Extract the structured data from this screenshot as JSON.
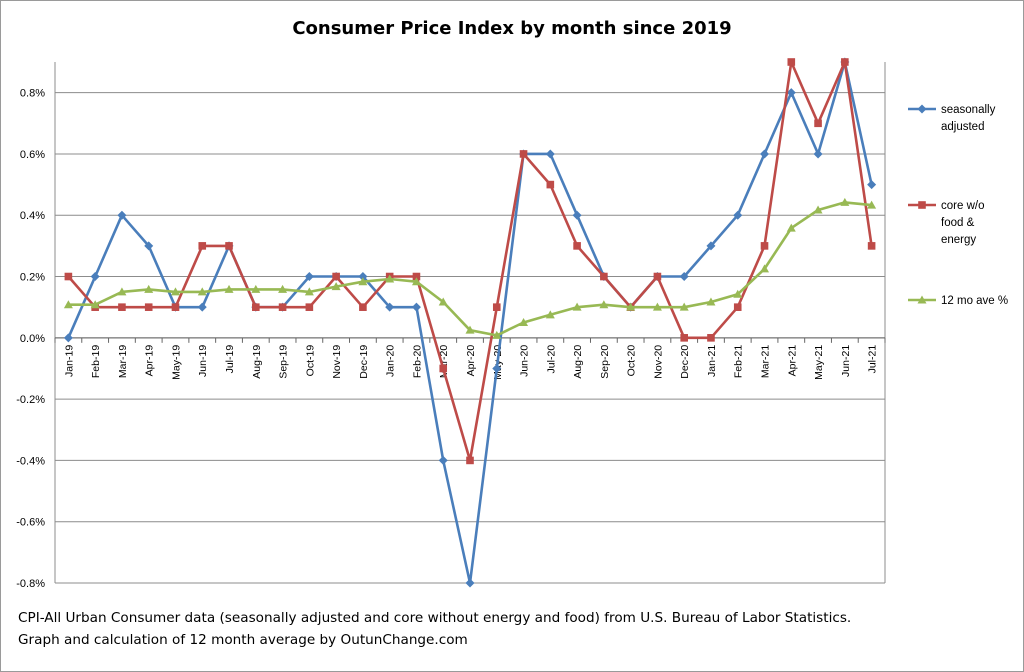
{
  "chart_data": {
    "type": "line",
    "title": "Consumer Price Index by month since 2019",
    "xlabel": "",
    "ylabel": "",
    "ylim": [
      -0.8,
      0.9
    ],
    "y_ticks": [
      "0.8%",
      "0.6%",
      "0.4%",
      "0.2%",
      "0.0%",
      "-0.2%",
      "-0.4%",
      "-0.6%",
      "-0.8%"
    ],
    "grid": true,
    "legend_position": "right",
    "categories": [
      "Jan-19",
      "Feb-19",
      "Mar-19",
      "Apr-19",
      "May-19",
      "Jun-19",
      "Jul-19",
      "Aug-19",
      "Sep-19",
      "Oct-19",
      "Nov-19",
      "Dec-19",
      "Jan-20",
      "Feb-20",
      "Mar-20",
      "Apr-20",
      "May-20",
      "Jun-20",
      "Jul-20",
      "Aug-20",
      "Sep-20",
      "Oct-20",
      "Nov-20",
      "Dec-20",
      "Jan-21",
      "Feb-21",
      "Mar-21",
      "Apr-21",
      "May-21",
      "Jun-21",
      "Jul-21"
    ],
    "series": [
      {
        "name": "seasonally adjusted",
        "legend_lines": [
          "seasonally",
          "adjusted"
        ],
        "color": "#4a7ebb",
        "marker": "diamond",
        "values": [
          0.0,
          0.2,
          0.4,
          0.3,
          0.1,
          0.1,
          0.3,
          0.1,
          0.1,
          0.2,
          0.2,
          0.2,
          0.1,
          0.1,
          -0.4,
          -0.8,
          -0.1,
          0.6,
          0.6,
          0.4,
          0.2,
          0.1,
          0.2,
          0.2,
          0.3,
          0.4,
          0.6,
          0.8,
          0.6,
          0.9,
          0.5
        ]
      },
      {
        "name": "core w/o food & energy",
        "legend_lines": [
          "core w/o",
          "food &",
          "energy"
        ],
        "color": "#be4b48",
        "marker": "square",
        "values": [
          0.2,
          0.1,
          0.1,
          0.1,
          0.1,
          0.3,
          0.3,
          0.1,
          0.1,
          0.1,
          0.2,
          0.1,
          0.2,
          0.2,
          -0.1,
          -0.4,
          0.1,
          0.6,
          0.5,
          0.3,
          0.2,
          0.1,
          0.2,
          0.0,
          0.0,
          0.1,
          0.3,
          0.9,
          0.7,
          0.9,
          0.3
        ]
      },
      {
        "name": "12 mo ave %",
        "legend_lines": [
          "12 mo ave %"
        ],
        "color": "#98b954",
        "marker": "triangle",
        "values": [
          0.108,
          0.108,
          0.15,
          0.158,
          0.15,
          0.15,
          0.158,
          0.158,
          0.158,
          0.15,
          0.167,
          0.183,
          0.192,
          0.183,
          0.117,
          0.025,
          0.008,
          0.05,
          0.075,
          0.1,
          0.108,
          0.1,
          0.1,
          0.1,
          0.117,
          0.142,
          0.225,
          0.358,
          0.417,
          0.442,
          0.433
        ]
      }
    ]
  },
  "footnote": {
    "line1": "CPI-All Urban Consumer data (seasonally adjusted and core without energy and food) from U.S. Bureau of Labor Statistics.",
    "line2": "Graph and calculation of 12 month average by OutunChange.com"
  }
}
